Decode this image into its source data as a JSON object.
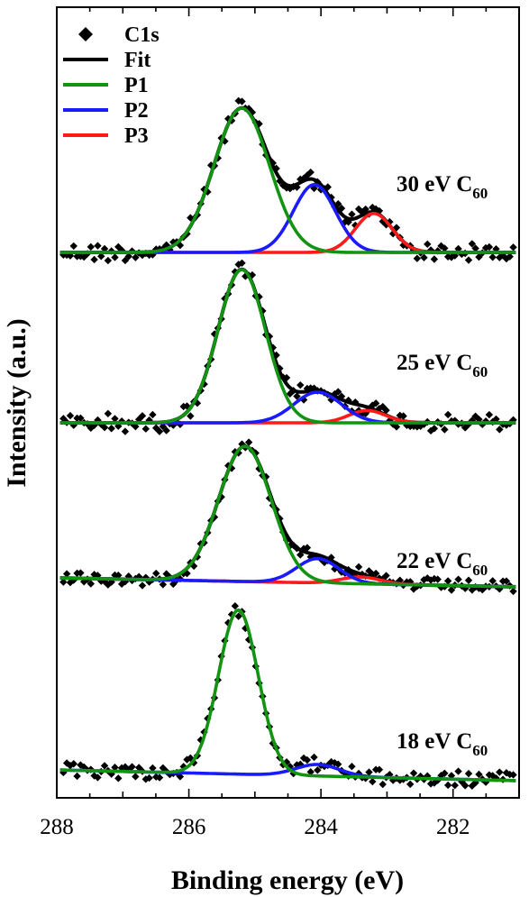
{
  "chart_data": {
    "type": "line",
    "xlabel": "Binding energy (eV)",
    "ylabel": "Intensity (a.u.)",
    "xlim": [
      288,
      281
    ],
    "x_reversed": true,
    "xticks": [
      288,
      286,
      284,
      282
    ],
    "xtick_labels": [
      "288",
      "286",
      "284",
      "282"
    ],
    "legend": {
      "placement": "top-left",
      "entries": [
        {
          "label": "C1s",
          "marker": "diamond",
          "color": "#000000"
        },
        {
          "label": "Fit",
          "color": "#000000"
        },
        {
          "label": "P1",
          "color": "#129412"
        },
        {
          "label": "P2",
          "color": "#1a1aff"
        },
        {
          "label": "P3",
          "color": "#ff1a1a"
        }
      ]
    },
    "panels": [
      {
        "name": "30 eV",
        "label_main": "30 eV C",
        "label_sub": "60",
        "peaks": [
          {
            "series": "P1",
            "center": 285.2,
            "sigma": 0.42,
            "height": 1.0
          },
          {
            "series": "P2",
            "center": 284.1,
            "sigma": 0.32,
            "height": 0.47
          },
          {
            "series": "P3",
            "center": 283.2,
            "sigma": 0.28,
            "height": 0.27
          }
        ]
      },
      {
        "name": "25 eV",
        "label_main": "25 eV C",
        "label_sub": "60",
        "peaks": [
          {
            "series": "P1",
            "center": 285.2,
            "sigma": 0.36,
            "height": 1.0
          },
          {
            "series": "P2",
            "center": 284.05,
            "sigma": 0.36,
            "height": 0.2
          },
          {
            "series": "P3",
            "center": 283.3,
            "sigma": 0.28,
            "height": 0.08
          }
        ]
      },
      {
        "name": "22 eV",
        "label_main": "22 eV C",
        "label_sub": "60",
        "peaks": [
          {
            "series": "P1",
            "center": 285.15,
            "sigma": 0.4,
            "height": 1.0
          },
          {
            "series": "P2",
            "center": 284.05,
            "sigma": 0.32,
            "height": 0.18
          },
          {
            "series": "P3",
            "center": 283.4,
            "sigma": 0.3,
            "height": 0.05
          }
        ]
      },
      {
        "name": "18 eV",
        "label_main": "18 eV C",
        "label_sub": "60",
        "peaks": [
          {
            "series": "P1",
            "center": 285.25,
            "sigma": 0.3,
            "height": 1.0
          },
          {
            "series": "P2",
            "center": 284.05,
            "sigma": 0.33,
            "height": 0.07
          }
        ]
      }
    ]
  }
}
